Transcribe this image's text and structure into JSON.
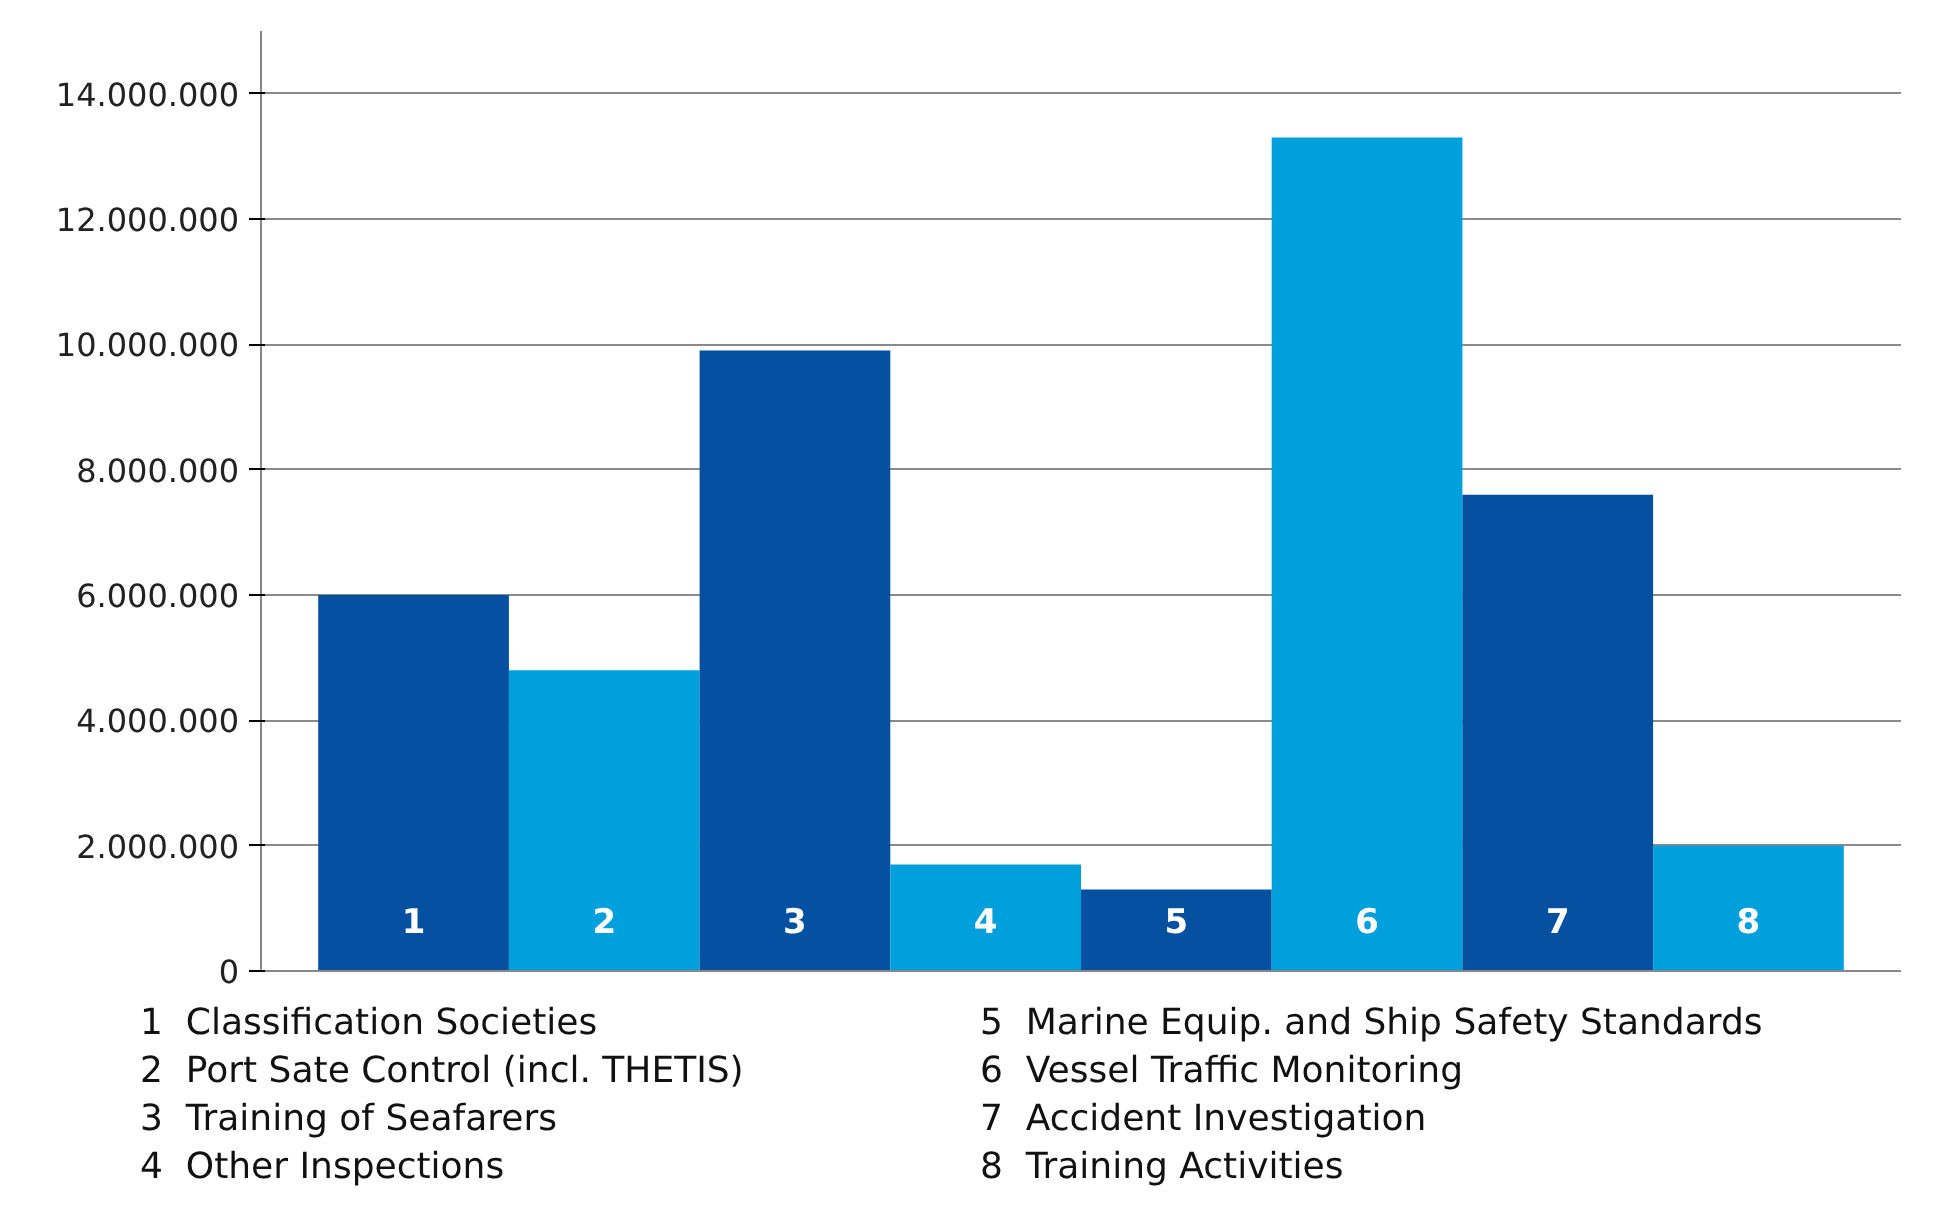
{
  "chart_data": {
    "type": "bar",
    "categories": [
      "1",
      "2",
      "3",
      "4",
      "5",
      "6",
      "7",
      "8"
    ],
    "values": [
      6000000,
      4800000,
      9900000,
      1700000,
      1300000,
      13300000,
      7600000,
      2000000
    ],
    "colors": [
      "#0550a0",
      "#00a0dc",
      "#0550a0",
      "#00a0dc",
      "#0550a0",
      "#00a0dc",
      "#0550a0",
      "#00a0dc"
    ],
    "ylim": [
      0,
      15000000
    ],
    "yticks": [
      {
        "value": 0,
        "label": "0"
      },
      {
        "value": 2000000,
        "label": "2.000.000"
      },
      {
        "value": 4000000,
        "label": "4.000.000"
      },
      {
        "value": 6000000,
        "label": "6.000.000"
      },
      {
        "value": 8000000,
        "label": "8.000.000"
      },
      {
        "value": 10000000,
        "label": "10.000.000"
      },
      {
        "value": 12000000,
        "label": "12.000.000"
      },
      {
        "value": 14000000,
        "label": "14.000.000"
      }
    ],
    "grid": "y",
    "tick_labels": "y",
    "annotations": [
      "1  Classification Societies",
      "2  Port Sate Control (incl. THETIS)",
      "3  Training of Seafarers",
      "4  Other Inspections",
      "5  Marine Equip. and Ship Safety Standards",
      "6  Vessel Traffic Monitoring",
      "7  Accident Investigation",
      "8  Training Activities"
    ]
  }
}
